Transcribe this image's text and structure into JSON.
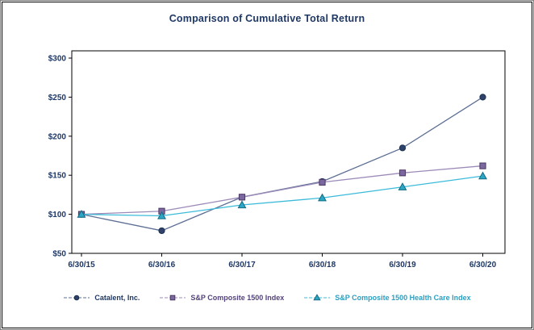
{
  "title": "Comparison of Cumulative Total Return",
  "colors": {
    "title_text": "#1F3864",
    "axis_label_text": "#1F3864",
    "plot_border": "#000000",
    "frame_border": "#000000",
    "background": "#FFFFFF"
  },
  "chart_data": {
    "type": "line",
    "title": "Comparison of Cumulative Total Return",
    "categories": [
      "6/30/15",
      "6/30/16",
      "6/30/17",
      "6/30/18",
      "6/30/19",
      "6/30/20"
    ],
    "series": [
      {
        "name": "Catalent, Inc.",
        "marker": "circle",
        "line_color": "#5C6E93",
        "color": "#30426B",
        "label_color": "#1F3864",
        "values": [
          100,
          79,
          122,
          142,
          185,
          250
        ]
      },
      {
        "name": "S&P Composite 1500 Index",
        "marker": "square",
        "line_color": "#9C8AB8",
        "color": "#7C68A0",
        "label_color": "#53437A",
        "values": [
          100,
          104,
          122,
          141,
          153,
          162
        ]
      },
      {
        "name": "S&P Composite 1500 Health Care Index",
        "marker": "triangle",
        "line_color": "#3BBBD9",
        "color": "#2BA6C4",
        "label_color": "#2B9FC0",
        "values": [
          100,
          98,
          112,
          121,
          135,
          149
        ]
      }
    ],
    "xlabel": "",
    "ylabel": "",
    "ylim": [
      50,
      300
    ],
    "y_tick_step": 50,
    "y_tick_prefix": "$",
    "y_tick_labels": [
      "$50",
      "$100",
      "$150",
      "$200",
      "$250",
      "$300"
    ],
    "grid": false,
    "legend_position": "bottom"
  }
}
